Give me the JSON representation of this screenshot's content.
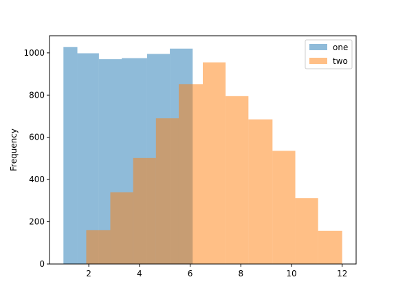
{
  "chart_data": {
    "type": "bar",
    "subtype": "overlapping-histogram",
    "title": "",
    "xlabel": "",
    "ylabel": "Frequency",
    "xlim": [
      0.45,
      12.55
    ],
    "ylim": [
      0,
      1081
    ],
    "xticks": [
      2,
      4,
      6,
      8,
      10,
      12
    ],
    "yticks": [
      0,
      200,
      400,
      600,
      800,
      1000
    ],
    "grid": false,
    "legend_placement": "top-right",
    "series": [
      {
        "name": "one",
        "color": "#1f77b4",
        "alpha": 0.5,
        "bin_edges": [
          1.0,
          1.55,
          2.4,
          3.3,
          4.3,
          5.2,
          6.1,
          6.5
        ],
        "values": [
          1028,
          998,
          970,
          975,
          995,
          1020,
          0
        ]
      },
      {
        "name": "two",
        "color": "#ff7f0e",
        "alpha": 0.5,
        "bin_edges": [
          1.9,
          2.85,
          3.75,
          4.65,
          5.55,
          6.5,
          7.4,
          8.3,
          9.25,
          10.15,
          11.05,
          12.0
        ],
        "values": [
          160,
          340,
          502,
          690,
          852,
          955,
          795,
          685,
          536,
          312,
          157
        ]
      }
    ]
  }
}
